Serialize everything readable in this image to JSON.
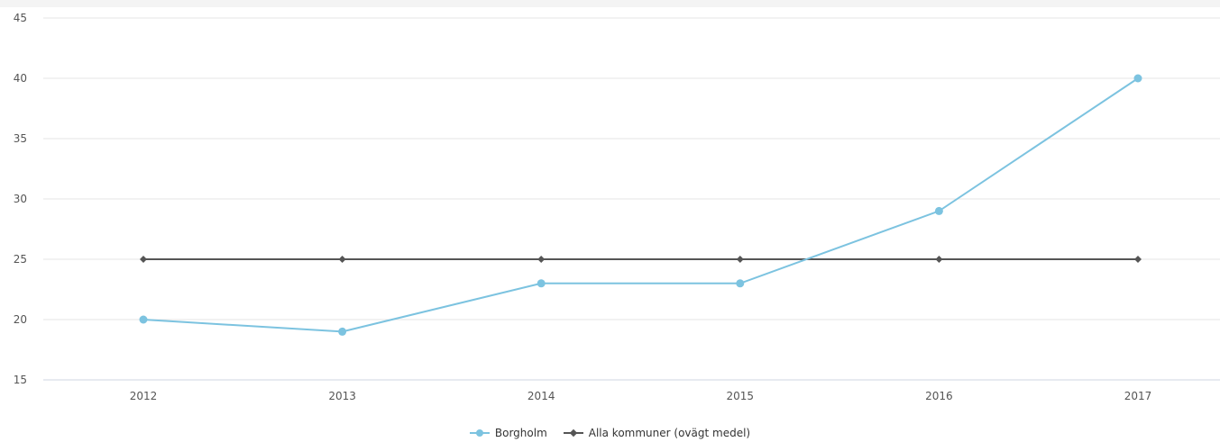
{
  "chart_data": {
    "type": "line",
    "x": [
      "2012",
      "2013",
      "2014",
      "2015",
      "2016",
      "2017"
    ],
    "yticks": [
      "15",
      "20",
      "25",
      "30",
      "35",
      "40",
      "45"
    ],
    "ylim": [
      15,
      45
    ],
    "grid": true,
    "legend_position": "bottom-center",
    "series": [
      {
        "name": "Borgholm",
        "values": [
          20,
          19,
          23,
          23,
          29,
          40
        ],
        "color": "#7cc3e0",
        "marker": "circle"
      },
      {
        "name": "Alla kommuner (ovägt medel)",
        "values": [
          25,
          25,
          25,
          25,
          25,
          25
        ],
        "color": "#555555",
        "marker": "diamond"
      }
    ]
  }
}
